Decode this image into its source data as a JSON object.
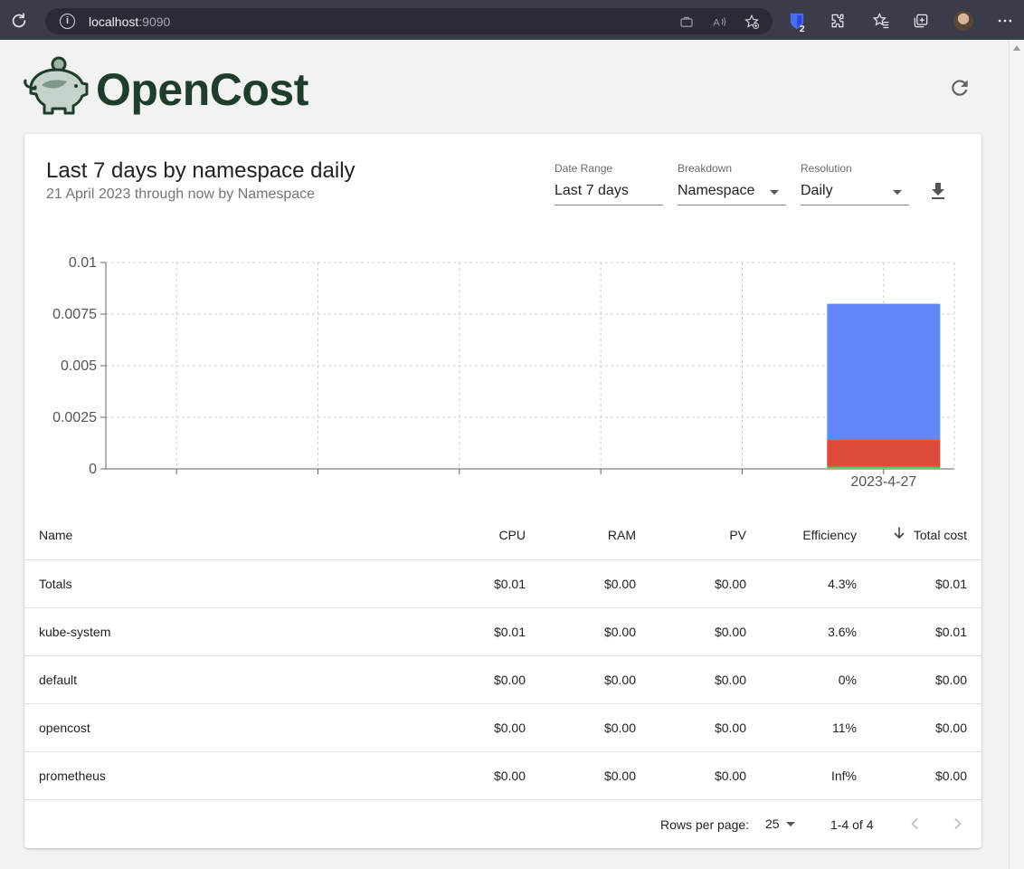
{
  "browser": {
    "url_host": "localhost",
    "url_port": ":9090",
    "bitwarden_badge": "2"
  },
  "header": {
    "logo_text": "OpenCost"
  },
  "report": {
    "title": "Last 7 days by namespace daily",
    "subtitle": "21 April 2023 through now by Namespace"
  },
  "controls": {
    "date_range": {
      "label": "Date Range",
      "value": "Last 7 days"
    },
    "breakdown": {
      "label": "Breakdown",
      "value": "Namespace"
    },
    "resolution": {
      "label": "Resolution",
      "value": "Daily"
    }
  },
  "chart_data": {
    "type": "bar",
    "stacked": true,
    "categories": [
      "",
      "",
      "",
      "",
      "",
      "2023-4-27"
    ],
    "y_ticks": [
      "0",
      "0.0025",
      "0.005",
      "0.0075",
      "0.01"
    ],
    "ylim": [
      0,
      0.01
    ],
    "grid": true,
    "series": [
      {
        "color": "#f2e95c",
        "values": [
          0,
          0,
          0,
          0,
          0,
          5e-05
        ]
      },
      {
        "color": "#4caf50",
        "values": [
          0,
          0,
          0,
          0,
          0,
          5e-05
        ]
      },
      {
        "color": "#dc4b3a",
        "values": [
          0,
          0,
          0,
          0,
          0,
          0.0013
        ]
      },
      {
        "color": "#6188f8",
        "values": [
          0,
          0,
          0,
          0,
          0,
          0.0066
        ]
      }
    ]
  },
  "table": {
    "headers": {
      "name": "Name",
      "cpu": "CPU",
      "ram": "RAM",
      "pv": "PV",
      "efficiency": "Efficiency",
      "total": "Total cost"
    },
    "rows": [
      {
        "name": "Totals",
        "cpu": "$0.01",
        "ram": "$0.00",
        "pv": "$0.00",
        "efficiency": "4.3%",
        "total": "$0.01"
      },
      {
        "name": "kube-system",
        "cpu": "$0.01",
        "ram": "$0.00",
        "pv": "$0.00",
        "efficiency": "3.6%",
        "total": "$0.01"
      },
      {
        "name": "default",
        "cpu": "$0.00",
        "ram": "$0.00",
        "pv": "$0.00",
        "efficiency": "0%",
        "total": "$0.00"
      },
      {
        "name": "opencost",
        "cpu": "$0.00",
        "ram": "$0.00",
        "pv": "$0.00",
        "efficiency": "11%",
        "total": "$0.00"
      },
      {
        "name": "prometheus",
        "cpu": "$0.00",
        "ram": "$0.00",
        "pv": "$0.00",
        "efficiency": "Inf%",
        "total": "$0.00"
      }
    ]
  },
  "pagination": {
    "rows_per_page_label": "Rows per page:",
    "rows_per_page": "25",
    "range": "1-4 of 4"
  },
  "colors": {
    "accent": "#1e3d2a",
    "blue_series": "#6188f8",
    "red_series": "#dc4b3a"
  }
}
